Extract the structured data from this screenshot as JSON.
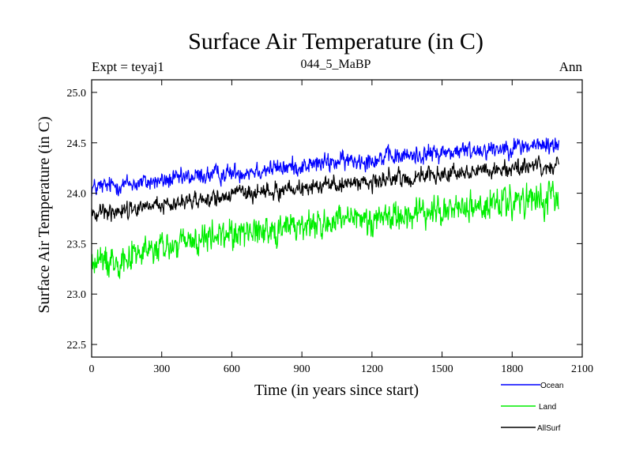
{
  "chart_data": {
    "type": "line",
    "title": "Surface Air Temperature (in C)",
    "subtitle_left": "Expt = teyaj1",
    "subtitle_center": "044_5_MaBP",
    "subtitle_right": "Ann",
    "xlabel": "Time (in years since start)",
    "ylabel": "Surface Air Temperature (in C)",
    "xlim": [
      0,
      2100
    ],
    "ylim": [
      22.375,
      25.125
    ],
    "xticks": [
      0,
      300,
      600,
      900,
      1200,
      1500,
      1800,
      2100
    ],
    "xtick_labels": [
      "0",
      "300",
      "600",
      "900",
      "1200",
      "1500",
      "1800",
      "2100"
    ],
    "yticks": [
      22.5,
      23.0,
      23.5,
      24.0,
      24.5,
      25.0
    ],
    "ytick_labels": [
      "22.5",
      "23.0",
      "23.5",
      "24.0",
      "24.5",
      "25.0"
    ],
    "grid": false,
    "legend_position": "bottom-right",
    "series": [
      {
        "name": "Ocean",
        "color": "#0000ff",
        "x": [
          0,
          100,
          200,
          300,
          400,
          500,
          600,
          700,
          800,
          900,
          1000,
          1100,
          1200,
          1300,
          1400,
          1500,
          1600,
          1700,
          1800,
          1900,
          2000
        ],
        "values": [
          24.05,
          24.08,
          24.1,
          24.12,
          24.15,
          24.18,
          24.2,
          24.23,
          24.25,
          24.27,
          24.3,
          24.32,
          24.34,
          24.36,
          24.38,
          24.4,
          24.42,
          24.44,
          24.46,
          24.47,
          24.48
        ]
      },
      {
        "name": "Land",
        "color": "#00ee00",
        "x": [
          0,
          100,
          200,
          300,
          400,
          500,
          600,
          700,
          800,
          900,
          1000,
          1100,
          1200,
          1300,
          1400,
          1500,
          1600,
          1700,
          1800,
          1900,
          2000
        ],
        "values": [
          23.3,
          23.35,
          23.4,
          23.45,
          23.5,
          23.55,
          23.6,
          23.63,
          23.65,
          23.68,
          23.7,
          23.72,
          23.75,
          23.78,
          23.8,
          23.82,
          23.85,
          23.88,
          23.9,
          23.92,
          23.93
        ]
      },
      {
        "name": "AllSurf",
        "color": "#000000",
        "x": [
          0,
          100,
          200,
          300,
          400,
          500,
          600,
          700,
          800,
          900,
          1000,
          1100,
          1200,
          1300,
          1400,
          1500,
          1600,
          1700,
          1800,
          1900,
          2000
        ],
        "values": [
          23.8,
          23.83,
          23.86,
          23.88,
          23.92,
          23.95,
          23.98,
          24.0,
          24.03,
          24.05,
          24.08,
          24.1,
          24.12,
          24.14,
          24.16,
          24.18,
          24.2,
          24.22,
          24.24,
          24.25,
          24.26
        ]
      }
    ]
  }
}
